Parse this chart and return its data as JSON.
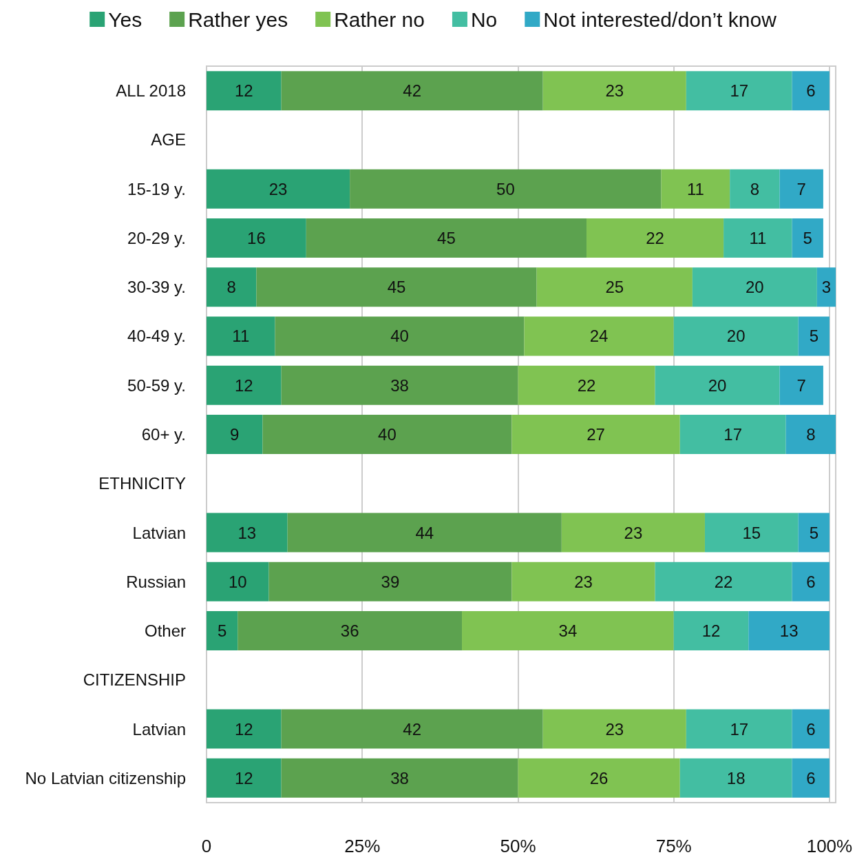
{
  "chart_data": {
    "type": "bar",
    "orientation": "horizontal",
    "stacked": true,
    "categories": [
      "ALL 2018",
      "AGE",
      "15-19 y.",
      "20-29 y.",
      "30-39 y.",
      "40-49 y.",
      "50-59 y.",
      "60+ y.",
      "ETHNICITY",
      "Latvian",
      "Russian",
      "Other",
      "CITIZENSHIP",
      "Latvian",
      "No Latvian citizenship"
    ],
    "series": [
      {
        "name": "Yes",
        "color": "#2aa374",
        "values": [
          12,
          null,
          23,
          16,
          8,
          11,
          12,
          9,
          null,
          13,
          10,
          5,
          null,
          12,
          12
        ]
      },
      {
        "name": "Rather yes",
        "color": "#5ca24f",
        "values": [
          42,
          null,
          50,
          45,
          45,
          40,
          38,
          40,
          null,
          44,
          39,
          36,
          null,
          42,
          38
        ]
      },
      {
        "name": "Rather no",
        "color": "#80c352",
        "values": [
          23,
          null,
          11,
          22,
          25,
          24,
          22,
          27,
          null,
          23,
          23,
          34,
          null,
          23,
          26
        ]
      },
      {
        "name": "No",
        "color": "#43bea2",
        "values": [
          17,
          null,
          8,
          11,
          20,
          20,
          20,
          17,
          null,
          15,
          22,
          12,
          null,
          17,
          18
        ]
      },
      {
        "name": "Not interested/don’t know",
        "color": "#31a9c6",
        "values": [
          6,
          null,
          7,
          5,
          3,
          5,
          7,
          8,
          null,
          5,
          6,
          13,
          null,
          6,
          6
        ]
      }
    ],
    "xlim": [
      0,
      101
    ],
    "xticks": [
      0,
      {
        "value": 25,
        "label": "25%"
      },
      {
        "value": 50,
        "label": "50%"
      },
      {
        "value": 75,
        "label": "75%"
      },
      {
        "value": 100,
        "label": "100%"
      }
    ],
    "grid": "x",
    "legend": "top",
    "data_labels": true
  }
}
